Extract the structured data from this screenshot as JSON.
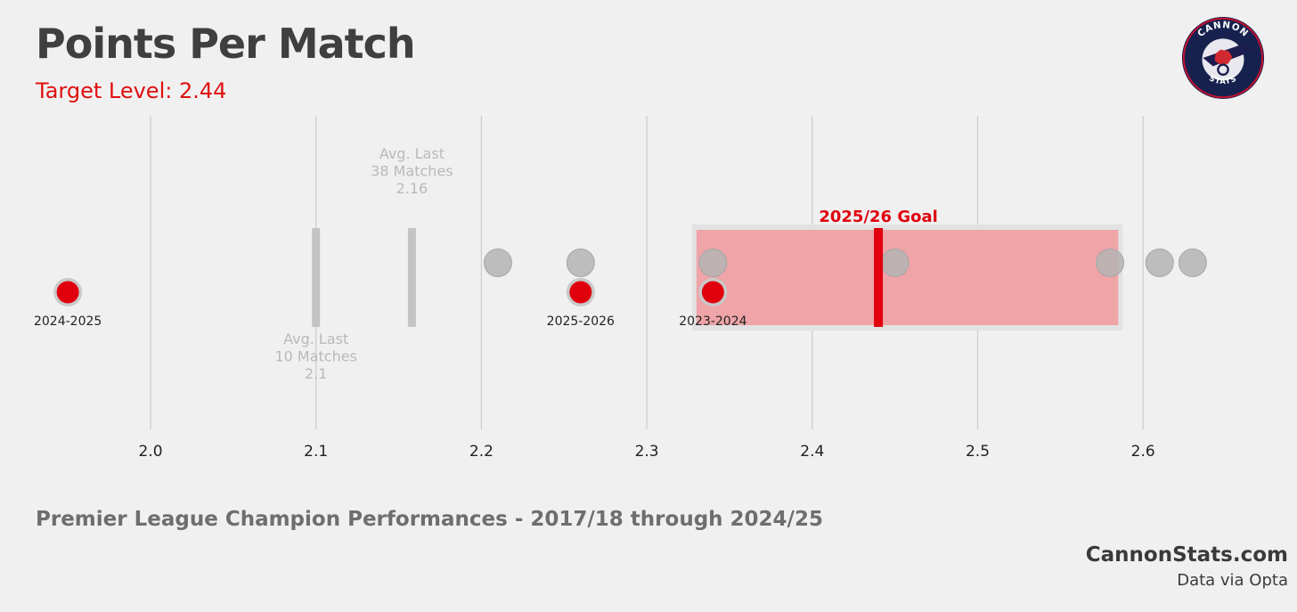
{
  "chart_data": {
    "type": "scatter",
    "title": "Points Per Match",
    "subtitle": "Target Level: 2.44",
    "caption": "Premier League Champion Performances - 2017/18 through 2024/25",
    "xlim": [
      1.94,
      2.66
    ],
    "xticks": [
      "2.0",
      "2.1",
      "2.2",
      "2.3",
      "2.4",
      "2.5",
      "2.6"
    ],
    "champion_seasons": [
      2.21,
      2.26,
      2.34,
      2.45,
      2.58,
      2.61,
      2.63
    ],
    "arsenal_seasons": [
      {
        "label": "2024-2025",
        "value": 1.95
      },
      {
        "label": "2025-2026",
        "value": 2.26
      },
      {
        "label": "2023-2024",
        "value": 2.34
      }
    ],
    "averages": [
      {
        "label": "Avg. Last 10 Matches",
        "value_label": "2.1",
        "value": 2.1,
        "placement": "below"
      },
      {
        "label": "Avg. Last 38 Matches",
        "value_label": "2.16",
        "value": 2.158,
        "placement": "above"
      }
    ],
    "goal": {
      "label": "2025/26 Goal",
      "value": 2.44,
      "range": [
        2.33,
        2.585
      ]
    },
    "colors": {
      "arsenal": "#e0000e",
      "champion": "#b4b4b4",
      "goal_band": "#efa4a8",
      "avg_bar": "#c4c4c4",
      "grid": "#cccccc"
    }
  },
  "branding": {
    "site": "CannonStats.com",
    "source": "Data via Opta",
    "logo_top": "CANNON",
    "logo_bottom": "STATS"
  }
}
